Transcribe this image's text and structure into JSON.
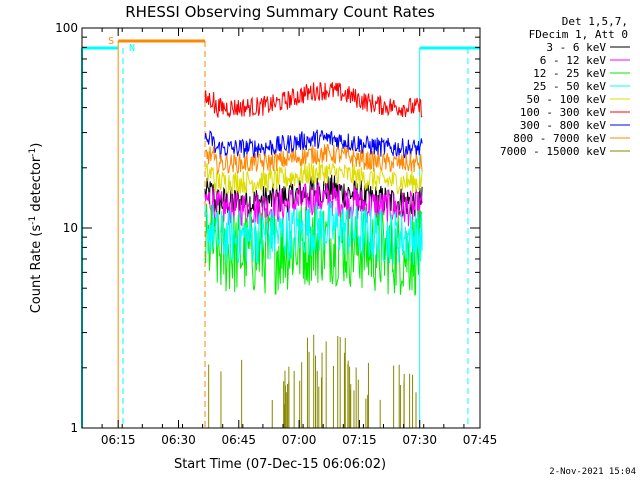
{
  "chart_data": {
    "type": "line",
    "title": "RHESSI Observing Summary Count Rates",
    "xlabel": "Start Time (07-Dec-15 06:06:02)",
    "ylabel_main": "Count Rate (s",
    "ylabel_sup1": "-1",
    "ylabel_mid": " detector",
    "ylabel_sup2": "-1",
    "ylabel_end": ")",
    "yscale": "log",
    "ylim": [
      1,
      100
    ],
    "xlim_minutes": [
      6.1,
      7.75
    ],
    "x_ticks": [
      {
        "label": "06:15",
        "t": 6.25
      },
      {
        "label": "06:30",
        "t": 6.5
      },
      {
        "label": "06:45",
        "t": 6.75
      },
      {
        "label": "07:00",
        "t": 7.0
      },
      {
        "label": "07:15",
        "t": 7.25
      },
      {
        "label": "07:30",
        "t": 7.5
      },
      {
        "label": "07:45",
        "t": 7.75
      }
    ],
    "y_ticks": [
      {
        "label": "1",
        "v": 1
      },
      {
        "label": "10",
        "v": 10
      },
      {
        "label": "100",
        "v": 100
      }
    ],
    "legend_header": [
      "Det 1,5,7,",
      "FDecim 1, Att 0"
    ],
    "data_start": 6.61,
    "data_end": 7.51,
    "series": [
      {
        "name": "3 - 6 keV",
        "color": "#000000",
        "level": 13.5,
        "bump": 0.15,
        "noise": 0.08
      },
      {
        "name": "6 - 12 keV",
        "color": "#ff00ff",
        "level": 12.5,
        "bump": 0.12,
        "noise": 0.09
      },
      {
        "name": "12 - 25 keV",
        "color": "#00ee00",
        "level": 7.5,
        "bump": 0.15,
        "noise": 0.22
      },
      {
        "name": "25 - 50 keV",
        "color": "#00ffff",
        "level": 9.0,
        "bump": 0.12,
        "noise": 0.14
      },
      {
        "name": "50 - 100 keV",
        "color": "#dddd00",
        "level": 17.0,
        "bump": 0.12,
        "noise": 0.06
      },
      {
        "name": "100 - 300 keV",
        "color": "#ff0000",
        "level": 40.0,
        "bump": 0.22,
        "noise": 0.05
      },
      {
        "name": "300 - 800 keV",
        "color": "#0000ff",
        "level": 25.0,
        "bump": 0.12,
        "noise": 0.05
      },
      {
        "name": "800 - 7000 keV",
        "color": "#ff8800",
        "level": 21.0,
        "bump": 0.12,
        "noise": 0.05
      },
      {
        "name": "7000 - 15000 keV",
        "color": "#888800",
        "level": 1.0,
        "bump": 0,
        "noise": 0
      }
    ],
    "annotations": {
      "saa_label": "S",
      "night_label": "N",
      "saa_color": "#ff8800",
      "night_color": "#00ffff",
      "saa_bar": [
        6.25,
        6.61
      ],
      "night_bars": [
        [
          6.1,
          6.25
        ],
        [
          7.5,
          7.75
        ]
      ],
      "saa_start": 6.25,
      "saa_end": 6.61,
      "night_start_dashed": 6.27,
      "night_end_solid": 7.5,
      "night_end_dashed": 7.7
    },
    "footer": "2-Nov-2021 15:04"
  }
}
